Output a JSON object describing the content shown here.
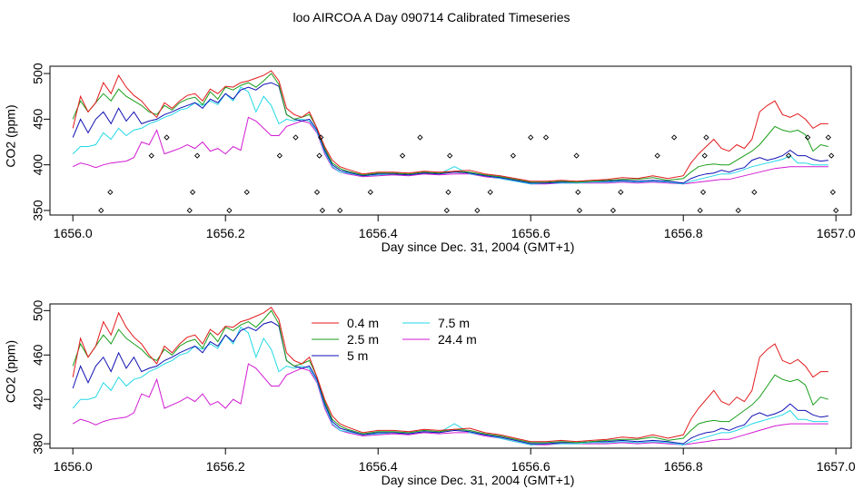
{
  "title": "loo AIRCOA A  Day 090714  Calibrated Timeseries",
  "chart_data": [
    {
      "type": "line+scatter",
      "title": "",
      "xlabel": "Day since Dec. 31, 2004 (GMT+1)",
      "ylabel": "CO2 (ppm)",
      "xlim": [
        1655.97,
        1657.02
      ],
      "ylim": [
        345,
        508
      ],
      "xticks": [
        1656.0,
        1656.2,
        1656.4,
        1656.6,
        1656.8,
        1657.0
      ],
      "xtick_labels": [
        "1656.0",
        "1656.2",
        "1656.4",
        "1656.6",
        "1656.8",
        "1657.0"
      ],
      "yticks": [
        350,
        400,
        450,
        500
      ],
      "ytick_labels": [
        "350",
        "400",
        "450",
        "500"
      ],
      "legend": "none",
      "grid": false,
      "scatter_points": {
        "name": "",
        "color": "#000000",
        "x": [
          1656.037,
          1656.049,
          1656.103,
          1656.123,
          1656.153,
          1656.157,
          1656.163,
          1656.205,
          1656.228,
          1656.271,
          1656.292,
          1656.32,
          1656.323,
          1656.325,
          1656.327,
          1656.35,
          1656.39,
          1656.432,
          1656.455,
          1656.49,
          1656.492,
          1656.494,
          1656.53,
          1656.547,
          1656.577,
          1656.6,
          1656.62,
          1656.66,
          1656.662,
          1656.664,
          1656.708,
          1656.718,
          1656.766,
          1656.788,
          1656.822,
          1656.826,
          1656.828,
          1656.83,
          1656.872,
          1656.893,
          1656.938,
          1656.963,
          1656.99,
          1656.994,
          1656.996,
          1657.0
        ],
        "y": [
          350,
          370,
          410,
          430,
          350,
          370,
          410,
          350,
          370,
          410,
          430,
          370,
          410,
          430,
          350,
          350,
          370,
          410,
          430,
          350,
          370,
          410,
          350,
          370,
          410,
          430,
          430,
          410,
          370,
          350,
          350,
          370,
          410,
          430,
          350,
          370,
          410,
          430,
          350,
          370,
          410,
          430,
          430,
          410,
          370,
          350
        ]
      },
      "series": [
        {
          "name": "0.4 m",
          "color": "#e31a1c",
          "x": [
            1656.0,
            1656.01,
            1656.02,
            1656.03,
            1656.04,
            1656.05,
            1656.06,
            1656.07,
            1656.08,
            1656.09,
            1656.1,
            1656.11,
            1656.12,
            1656.13,
            1656.14,
            1656.15,
            1656.16,
            1656.17,
            1656.18,
            1656.19,
            1656.2,
            1656.21,
            1656.22,
            1656.23,
            1656.24,
            1656.25,
            1656.26,
            1656.27,
            1656.28,
            1656.29,
            1656.3,
            1656.31,
            1656.32,
            1656.33,
            1656.34,
            1656.35,
            1656.36,
            1656.38,
            1656.4,
            1656.42,
            1656.44,
            1656.46,
            1656.48,
            1656.5,
            1656.52,
            1656.54,
            1656.56,
            1656.58,
            1656.6,
            1656.62,
            1656.64,
            1656.66,
            1656.68,
            1656.7,
            1656.72,
            1656.74,
            1656.76,
            1656.78,
            1656.8,
            1656.81,
            1656.82,
            1656.83,
            1656.84,
            1656.85,
            1656.86,
            1656.87,
            1656.88,
            1656.89,
            1656.9,
            1656.91,
            1656.92,
            1656.93,
            1656.94,
            1656.95,
            1656.96,
            1656.97,
            1656.98,
            1656.99
          ],
          "y": [
            440,
            475,
            458,
            468,
            490,
            478,
            498,
            485,
            476,
            470,
            460,
            452,
            468,
            462,
            470,
            476,
            478,
            470,
            483,
            478,
            486,
            485,
            490,
            492,
            495,
            498,
            503,
            492,
            462,
            455,
            452,
            458,
            440,
            420,
            405,
            398,
            395,
            390,
            392,
            392,
            391,
            393,
            392,
            393,
            394,
            390,
            388,
            385,
            382,
            382,
            383,
            382,
            383,
            384,
            386,
            385,
            388,
            385,
            388,
            402,
            412,
            420,
            428,
            418,
            415,
            422,
            418,
            428,
            458,
            465,
            470,
            455,
            452,
            456,
            450,
            440,
            445,
            445
          ]
        },
        {
          "name": "2.5 m",
          "color": "#1a9e1a",
          "x": [
            1656.0,
            1656.01,
            1656.02,
            1656.03,
            1656.04,
            1656.05,
            1656.06,
            1656.07,
            1656.08,
            1656.09,
            1656.1,
            1656.11,
            1656.12,
            1656.13,
            1656.14,
            1656.15,
            1656.16,
            1656.17,
            1656.18,
            1656.19,
            1656.2,
            1656.21,
            1656.22,
            1656.23,
            1656.24,
            1656.25,
            1656.26,
            1656.27,
            1656.28,
            1656.29,
            1656.3,
            1656.31,
            1656.32,
            1656.33,
            1656.34,
            1656.35,
            1656.36,
            1656.38,
            1656.4,
            1656.42,
            1656.44,
            1656.46,
            1656.48,
            1656.5,
            1656.52,
            1656.54,
            1656.56,
            1656.58,
            1656.6,
            1656.62,
            1656.64,
            1656.66,
            1656.68,
            1656.7,
            1656.72,
            1656.74,
            1656.76,
            1656.78,
            1656.8,
            1656.81,
            1656.82,
            1656.83,
            1656.84,
            1656.85,
            1656.86,
            1656.87,
            1656.88,
            1656.89,
            1656.9,
            1656.91,
            1656.92,
            1656.93,
            1656.94,
            1656.95,
            1656.96,
            1656.97,
            1656.98,
            1656.99
          ],
          "y": [
            450,
            470,
            458,
            468,
            478,
            470,
            483,
            475,
            470,
            465,
            458,
            455,
            465,
            460,
            468,
            472,
            474,
            466,
            480,
            472,
            485,
            482,
            487,
            490,
            485,
            492,
            500,
            488,
            455,
            450,
            452,
            455,
            440,
            418,
            402,
            396,
            393,
            389,
            391,
            391,
            390,
            392,
            391,
            393,
            392,
            389,
            387,
            384,
            381,
            381,
            382,
            381,
            382,
            383,
            384,
            384,
            386,
            383,
            385,
            392,
            398,
            400,
            401,
            400,
            400,
            405,
            410,
            415,
            422,
            432,
            442,
            438,
            436,
            438,
            433,
            415,
            422,
            420
          ]
        },
        {
          "name": "5 m",
          "color": "#1010b4",
          "x": [
            1656.0,
            1656.01,
            1656.02,
            1656.03,
            1656.04,
            1656.05,
            1656.06,
            1656.07,
            1656.08,
            1656.09,
            1656.1,
            1656.11,
            1656.12,
            1656.13,
            1656.14,
            1656.15,
            1656.16,
            1656.17,
            1656.18,
            1656.19,
            1656.2,
            1656.21,
            1656.22,
            1656.23,
            1656.24,
            1656.25,
            1656.26,
            1656.27,
            1656.28,
            1656.29,
            1656.3,
            1656.31,
            1656.32,
            1656.33,
            1656.34,
            1656.35,
            1656.36,
            1656.38,
            1656.4,
            1656.42,
            1656.44,
            1656.46,
            1656.48,
            1656.5,
            1656.52,
            1656.54,
            1656.56,
            1656.58,
            1656.6,
            1656.62,
            1656.64,
            1656.66,
            1656.68,
            1656.7,
            1656.72,
            1656.74,
            1656.76,
            1656.78,
            1656.8,
            1656.81,
            1656.82,
            1656.83,
            1656.84,
            1656.85,
            1656.86,
            1656.87,
            1656.88,
            1656.89,
            1656.9,
            1656.91,
            1656.92,
            1656.93,
            1656.94,
            1656.95,
            1656.96,
            1656.97,
            1656.98,
            1656.99
          ],
          "y": [
            430,
            450,
            435,
            450,
            458,
            445,
            462,
            448,
            458,
            445,
            448,
            450,
            455,
            458,
            462,
            465,
            468,
            462,
            472,
            468,
            478,
            472,
            482,
            485,
            482,
            488,
            490,
            486,
            455,
            450,
            448,
            450,
            438,
            416,
            400,
            394,
            392,
            388,
            390,
            390,
            389,
            391,
            390,
            392,
            391,
            388,
            386,
            383,
            380,
            380,
            381,
            381,
            382,
            382,
            383,
            382,
            383,
            382,
            380,
            385,
            388,
            390,
            391,
            394,
            392,
            395,
            397,
            405,
            408,
            405,
            407,
            410,
            416,
            410,
            410,
            406,
            404,
            405
          ]
        },
        {
          "name": "7.5 m",
          "color": "#22d8e6",
          "x": [
            1656.0,
            1656.01,
            1656.02,
            1656.03,
            1656.04,
            1656.05,
            1656.06,
            1656.07,
            1656.08,
            1656.09,
            1656.1,
            1656.11,
            1656.12,
            1656.13,
            1656.14,
            1656.15,
            1656.16,
            1656.17,
            1656.18,
            1656.19,
            1656.2,
            1656.21,
            1656.22,
            1656.23,
            1656.24,
            1656.25,
            1656.26,
            1656.27,
            1656.28,
            1656.29,
            1656.3,
            1656.31,
            1656.32,
            1656.33,
            1656.34,
            1656.35,
            1656.36,
            1656.38,
            1656.4,
            1656.42,
            1656.44,
            1656.46,
            1656.48,
            1656.5,
            1656.52,
            1656.54,
            1656.56,
            1656.58,
            1656.6,
            1656.62,
            1656.64,
            1656.66,
            1656.68,
            1656.7,
            1656.72,
            1656.74,
            1656.76,
            1656.78,
            1656.8,
            1656.81,
            1656.82,
            1656.83,
            1656.84,
            1656.85,
            1656.86,
            1656.87,
            1656.88,
            1656.89,
            1656.9,
            1656.91,
            1656.92,
            1656.93,
            1656.94,
            1656.95,
            1656.96,
            1656.97,
            1656.98,
            1656.99
          ],
          "y": [
            412,
            420,
            420,
            422,
            435,
            428,
            440,
            432,
            438,
            440,
            445,
            448,
            452,
            455,
            460,
            462,
            468,
            465,
            470,
            466,
            478,
            470,
            485,
            480,
            458,
            475,
            465,
            445,
            450,
            448,
            450,
            448,
            436,
            414,
            398,
            392,
            391,
            388,
            389,
            390,
            389,
            391,
            390,
            398,
            390,
            388,
            385,
            382,
            379,
            380,
            380,
            380,
            381,
            381,
            382,
            381,
            382,
            381,
            379,
            382,
            384,
            386,
            388,
            390,
            390,
            392,
            395,
            398,
            400,
            402,
            404,
            406,
            410,
            402,
            402,
            400,
            400,
            400
          ]
        },
        {
          "name": "24.4 m",
          "color": "#d21ad2",
          "x": [
            1656.0,
            1656.01,
            1656.02,
            1656.03,
            1656.04,
            1656.05,
            1656.06,
            1656.07,
            1656.08,
            1656.09,
            1656.1,
            1656.11,
            1656.12,
            1656.13,
            1656.14,
            1656.15,
            1656.16,
            1656.17,
            1656.18,
            1656.19,
            1656.2,
            1656.21,
            1656.22,
            1656.23,
            1656.24,
            1656.25,
            1656.26,
            1656.27,
            1656.28,
            1656.29,
            1656.3,
            1656.31,
            1656.32,
            1656.33,
            1656.34,
            1656.35,
            1656.36,
            1656.38,
            1656.4,
            1656.42,
            1656.44,
            1656.46,
            1656.48,
            1656.5,
            1656.52,
            1656.54,
            1656.56,
            1656.58,
            1656.6,
            1656.62,
            1656.64,
            1656.66,
            1656.68,
            1656.7,
            1656.72,
            1656.74,
            1656.76,
            1656.78,
            1656.8,
            1656.81,
            1656.82,
            1656.83,
            1656.84,
            1656.85,
            1656.86,
            1656.87,
            1656.88,
            1656.89,
            1656.9,
            1656.91,
            1656.92,
            1656.93,
            1656.94,
            1656.95,
            1656.96,
            1656.97,
            1656.98,
            1656.99
          ],
          "y": [
            398,
            402,
            400,
            397,
            400,
            402,
            403,
            404,
            408,
            425,
            422,
            438,
            412,
            415,
            418,
            422,
            418,
            425,
            415,
            418,
            412,
            420,
            416,
            452,
            448,
            440,
            432,
            432,
            442,
            445,
            448,
            446,
            435,
            412,
            397,
            392,
            390,
            387,
            388,
            389,
            388,
            390,
            389,
            390,
            390,
            387,
            385,
            382,
            379,
            379,
            380,
            380,
            380,
            380,
            381,
            380,
            381,
            380,
            379,
            380,
            381,
            382,
            383,
            384,
            384,
            386,
            388,
            390,
            392,
            394,
            396,
            397,
            398,
            398,
            398,
            398,
            398,
            398
          ]
        }
      ]
    },
    {
      "type": "line",
      "title": "",
      "xlabel": "Day since Dec. 31, 2004 (GMT+1)",
      "ylabel": "CO2 (ppm)",
      "xlim": [
        1655.97,
        1657.02
      ],
      "ylim": [
        376,
        506
      ],
      "xticks": [
        1656.0,
        1656.2,
        1656.4,
        1656.6,
        1656.8,
        1657.0
      ],
      "xtick_labels": [
        "1656.0",
        "1656.2",
        "1656.4",
        "1656.6",
        "1656.8",
        "1657.0"
      ],
      "yticks": [
        380,
        420,
        460,
        500
      ],
      "ytick_labels": [
        "380",
        "420",
        "460",
        "500"
      ],
      "legend": "inside top-center",
      "grid": false,
      "legend_entries": [
        "0.4 m",
        "2.5 m",
        "5 m",
        "7.5 m",
        "24.4 m"
      ],
      "series": [
        {
          "name": "0.4 m",
          "color": "#e31a1c",
          "same_as_panel": 0
        },
        {
          "name": "2.5 m",
          "color": "#1a9e1a",
          "same_as_panel": 0
        },
        {
          "name": "5 m",
          "color": "#1010b4",
          "same_as_panel": 0
        },
        {
          "name": "7.5 m",
          "color": "#22d8e6",
          "same_as_panel": 0
        },
        {
          "name": "24.4 m",
          "color": "#d21ad2",
          "same_as_panel": 0
        }
      ]
    }
  ]
}
